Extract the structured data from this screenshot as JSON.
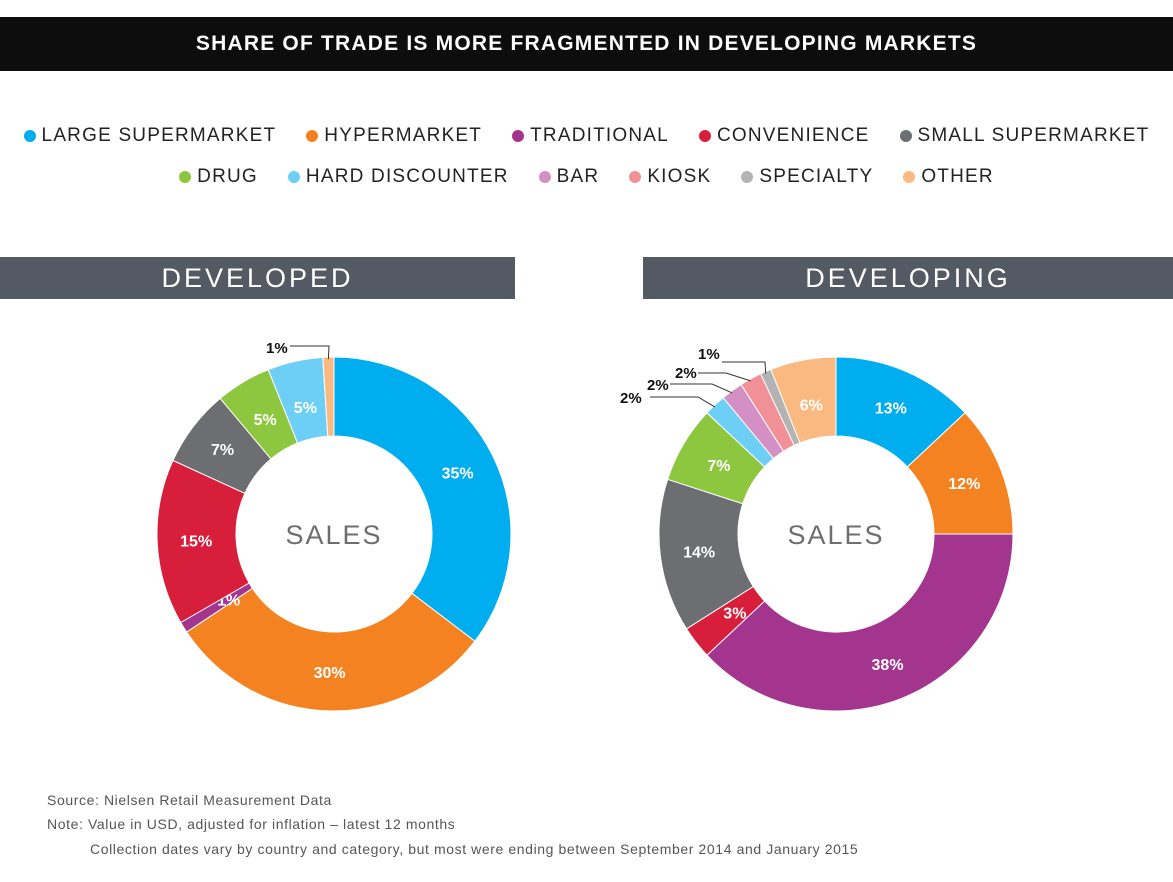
{
  "title": "SHARE OF TRADE IS MORE FRAGMENTED IN DEVELOPING MARKETS",
  "legend": {
    "row1": [
      {
        "label": "LARGE SUPERMARKET",
        "color": "#00aeef"
      },
      {
        "label": "HYPERMARKET",
        "color": "#f58220"
      },
      {
        "label": "TRADITIONAL",
        "color": "#a3358f"
      },
      {
        "label": "CONVENIENCE",
        "color": "#d71f3c"
      },
      {
        "label": "SMALL SUPERMARKET",
        "color": "#6d6e71"
      }
    ],
    "row2": [
      {
        "label": "DRUG",
        "color": "#8dc63f"
      },
      {
        "label": "HARD DISCOUNTER",
        "color": "#6dcff6"
      },
      {
        "label": "BAR",
        "color": "#d490c4"
      },
      {
        "label": "KIOSK",
        "color": "#f19197"
      },
      {
        "label": "SPECIALTY",
        "color": "#b3b3b3"
      },
      {
        "label": "OTHER",
        "color": "#fbb982"
      }
    ]
  },
  "panels": {
    "developed": "DEVELOPED",
    "developing": "DEVELOPING"
  },
  "chart_data": [
    {
      "type": "pie",
      "donut": true,
      "title": "DEVELOPED",
      "center_label": "SALES",
      "slices": [
        {
          "category": "LARGE SUPERMARKET",
          "value": 35,
          "label": "35%",
          "color": "#00aeef"
        },
        {
          "category": "HYPERMARKET",
          "value": 30,
          "label": "30%",
          "color": "#f58220"
        },
        {
          "category": "TRADITIONAL",
          "value": 1,
          "label": "1%",
          "color": "#a3358f"
        },
        {
          "category": "CONVENIENCE",
          "value": 15,
          "label": "15%",
          "color": "#d71f3c"
        },
        {
          "category": "SMALL SUPERMARKET",
          "value": 7,
          "label": "7%",
          "color": "#6d6e71"
        },
        {
          "category": "DRUG",
          "value": 5,
          "label": "5%",
          "color": "#8dc63f"
        },
        {
          "category": "HARD DISCOUNTER",
          "value": 5,
          "label": "5%",
          "color": "#6dcff6"
        },
        {
          "category": "OTHER",
          "value": 1,
          "label": "1%",
          "color": "#fbb982"
        }
      ]
    },
    {
      "type": "pie",
      "donut": true,
      "title": "DEVELOPING",
      "center_label": "SALES",
      "slices": [
        {
          "category": "LARGE SUPERMARKET",
          "value": 13,
          "label": "13%",
          "color": "#00aeef"
        },
        {
          "category": "HYPERMARKET",
          "value": 12,
          "label": "12%",
          "color": "#f58220"
        },
        {
          "category": "TRADITIONAL",
          "value": 38,
          "label": "38%",
          "color": "#a3358f"
        },
        {
          "category": "CONVENIENCE",
          "value": 3,
          "label": "3%",
          "color": "#d71f3c"
        },
        {
          "category": "SMALL SUPERMARKET",
          "value": 14,
          "label": "14%",
          "color": "#6d6e71"
        },
        {
          "category": "DRUG",
          "value": 7,
          "label": "7%",
          "color": "#8dc63f"
        },
        {
          "category": "HARD DISCOUNTER",
          "value": 2,
          "label": "2%",
          "color": "#6dcff6"
        },
        {
          "category": "BAR",
          "value": 2,
          "label": "2%",
          "color": "#d490c4"
        },
        {
          "category": "KIOSK",
          "value": 2,
          "label": "2%",
          "color": "#f19197"
        },
        {
          "category": "SPECIALTY",
          "value": 1,
          "label": "1%",
          "color": "#b3b3b3"
        },
        {
          "category": "OTHER",
          "value": 6,
          "label": "6%",
          "color": "#fbb982"
        }
      ]
    }
  ],
  "footnotes": {
    "source": "Source: Nielsen Retail Measurement Data",
    "note": "Note: Value in USD, adjusted for inflation – latest 12 months",
    "collection": "Collection dates vary by country and category, but most were ending between September 2014 and January 2015"
  }
}
